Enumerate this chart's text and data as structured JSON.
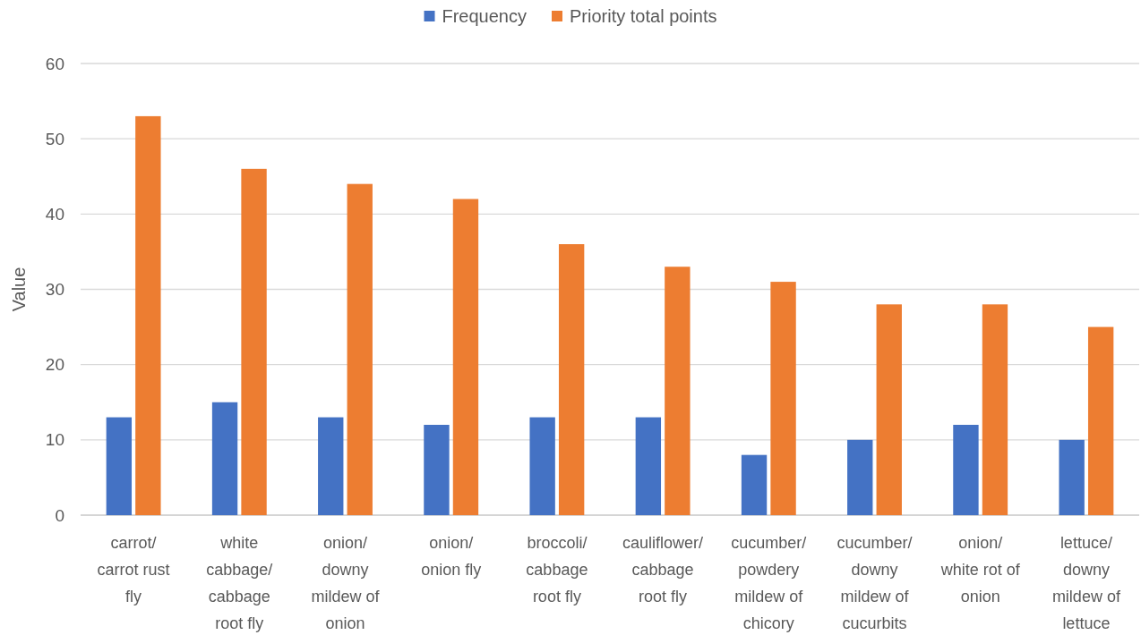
{
  "chart_data": {
    "type": "bar",
    "ylabel": "Value",
    "categories": [
      "carrot/ carrot rust fly",
      "white cabbage/ cabbage root fly",
      "onion/ downy mildew of onion",
      "onion/ onion fly",
      "broccoli/ cabbage root fly",
      "cauliflower/ cabbage root fly",
      "cucumber/ powdery mildew of chicory",
      "cucumber/ downy mildew of cucurbits",
      "onion/ white rot of onion",
      "lettuce/ downy mildew of lettuce"
    ],
    "series": [
      {
        "name": "Frequency",
        "color": "#4472c4",
        "values": [
          13,
          15,
          13,
          12,
          13,
          13,
          8,
          10,
          12,
          10
        ]
      },
      {
        "name": "Priority total points",
        "color": "#ed7d31",
        "values": [
          53,
          46,
          44,
          42,
          36,
          33,
          31,
          28,
          28,
          25
        ]
      }
    ],
    "ylim": [
      0,
      60
    ],
    "yticks": [
      0,
      10,
      20,
      30,
      40,
      50,
      60
    ],
    "grid": "y",
    "legend": "top"
  }
}
